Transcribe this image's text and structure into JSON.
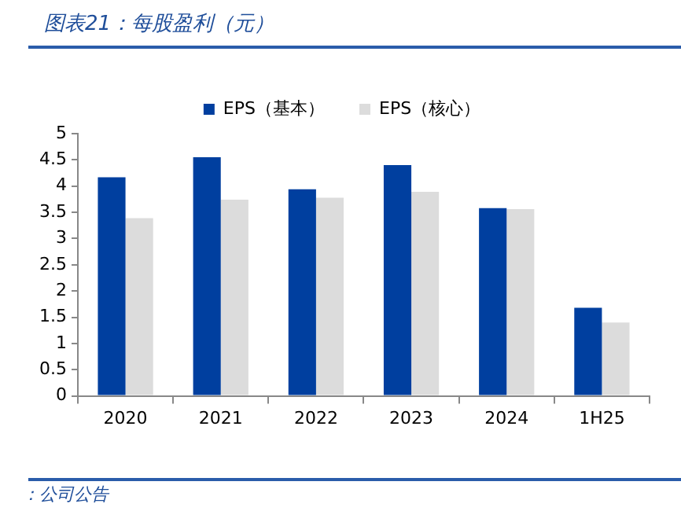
{
  "chart_data": {
    "type": "bar",
    "title": "图表21：每股盈利（元）",
    "categories": [
      "2020",
      "2021",
      "2022",
      "2023",
      "2024",
      "1H25"
    ],
    "series": [
      {
        "name": "EPS（基本）",
        "color": "#003f9f",
        "values": [
          4.17,
          4.55,
          3.94,
          4.4,
          3.58,
          1.68
        ]
      },
      {
        "name": "EPS（核心）",
        "color": "#dcdcdc",
        "values": [
          3.39,
          3.74,
          3.78,
          3.89,
          3.56,
          1.4
        ]
      }
    ],
    "ylim": [
      0,
      5
    ],
    "yticks": [
      0,
      0.5,
      1,
      1.5,
      2,
      2.5,
      3,
      3.5,
      4,
      4.5,
      5
    ],
    "grid": false,
    "legend": "top",
    "annotations": [
      "：公司公告"
    ]
  }
}
